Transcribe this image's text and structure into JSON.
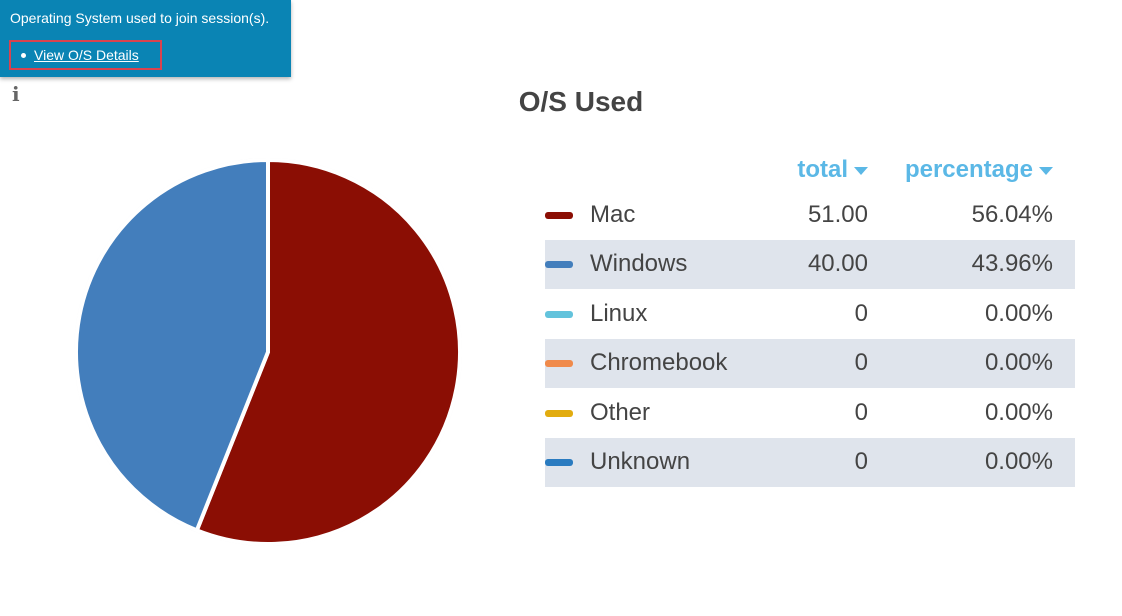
{
  "tooltip": {
    "description": "Operating System used to join session(s).",
    "link": "View O/S Details"
  },
  "info_icon": "info-icon",
  "chart_data": {
    "type": "pie",
    "title": "O/S Used",
    "columns": {
      "total": "total",
      "percentage": "percentage"
    },
    "slices": [
      {
        "label": "Mac",
        "total": "51.00",
        "percentage": "56.04%",
        "value": 51,
        "color": "#8b0e04"
      },
      {
        "label": "Windows",
        "total": "40.00",
        "percentage": "43.96%",
        "value": 40,
        "color": "#437ebc"
      },
      {
        "label": "Linux",
        "total": "0",
        "percentage": "0.00%",
        "value": 0,
        "color": "#63c3dc"
      },
      {
        "label": "Chromebook",
        "total": "0",
        "percentage": "0.00%",
        "value": 0,
        "color": "#f08a4b"
      },
      {
        "label": "Other",
        "total": "0",
        "percentage": "0.00%",
        "value": 0,
        "color": "#e2ac0f"
      },
      {
        "label": "Unknown",
        "total": "0",
        "percentage": "0.00%",
        "value": 0,
        "color": "#2a7bc0"
      }
    ]
  }
}
